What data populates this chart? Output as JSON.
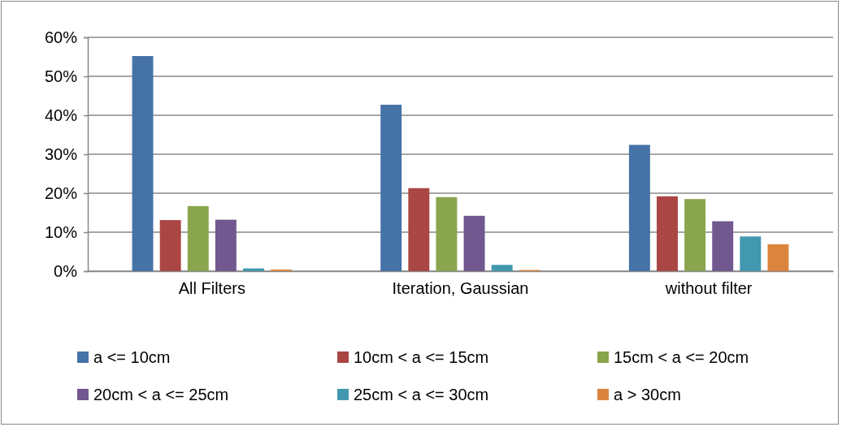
{
  "chart_data": {
    "type": "bar",
    "categories": [
      "All Filters",
      "Iteration, Gaussian",
      "without filter"
    ],
    "series": [
      {
        "name": "a <= 10cm",
        "color": "#4572a7",
        "values": [
          55.2,
          42.7,
          32.4
        ]
      },
      {
        "name": "10cm < a <= 15cm",
        "color": "#aa4643",
        "values": [
          13.1,
          21.3,
          19.2
        ]
      },
      {
        "name": "15cm < a <= 20cm",
        "color": "#89a54e",
        "values": [
          16.7,
          19.0,
          18.5
        ]
      },
      {
        "name": "20cm < a <= 25cm",
        "color": "#71588f",
        "values": [
          13.2,
          14.2,
          12.8
        ]
      },
      {
        "name": "25cm < a <= 30cm",
        "color": "#4198af",
        "values": [
          0.7,
          1.6,
          8.9
        ]
      },
      {
        "name": "a > 30cm",
        "color": "#db843d",
        "values": [
          0.4,
          0.3,
          6.9
        ]
      }
    ],
    "ylim": [
      0,
      60
    ],
    "yticks": [
      {
        "value": 0,
        "label": "0%"
      },
      {
        "value": 10,
        "label": "10%"
      },
      {
        "value": 20,
        "label": "20%"
      },
      {
        "value": 30,
        "label": "30%"
      },
      {
        "value": 40,
        "label": "40%"
      },
      {
        "value": 50,
        "label": "50%"
      },
      {
        "value": 60,
        "label": "60%"
      }
    ],
    "grid": "y",
    "legend": "bottom"
  }
}
